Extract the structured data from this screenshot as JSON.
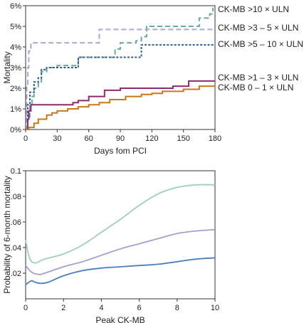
{
  "chart_data": [
    {
      "type": "line",
      "subtype": "step",
      "xlabel": "Days fom PCI",
      "ylabel": "Mortality",
      "xlim": [
        0,
        180
      ],
      "ylim": [
        0,
        6
      ],
      "xticks": [
        0,
        30,
        60,
        90,
        120,
        150,
        180
      ],
      "xtick_labels": [
        "0",
        "30",
        "60",
        "90",
        "120",
        "150",
        "180"
      ],
      "yticks": [
        0,
        1,
        2,
        3,
        4,
        5,
        6
      ],
      "ytick_labels": [
        "0%",
        "1%",
        "2%",
        "3%",
        "4%",
        "5%",
        "6%"
      ],
      "legend_placement": "right, labels at line ends",
      "grid": false,
      "series": [
        {
          "name": "CK-MB >10 × ULN",
          "color": "#6aab96",
          "dash": "dashed",
          "x": [
            0,
            2,
            4,
            6,
            8,
            12,
            15,
            20,
            30,
            50,
            70,
            85,
            90,
            105,
            110,
            115,
            150,
            165,
            175,
            178
          ],
          "y": [
            0,
            0.6,
            1.2,
            1.6,
            2.0,
            2.3,
            2.8,
            3.0,
            3.1,
            3.5,
            3.5,
            3.9,
            4.2,
            4.3,
            4.5,
            5.0,
            5.0,
            5.4,
            5.6,
            5.9
          ]
        },
        {
          "name": "CK-MB >3 – 5 × ULN",
          "color": "#a7a8d4",
          "dash": "dashed",
          "x": [
            0,
            1,
            2,
            3,
            5,
            70,
            170,
            180
          ],
          "y": [
            0,
            2.2,
            3.0,
            3.8,
            4.2,
            4.85,
            4.85,
            4.85
          ]
        },
        {
          "name": "CK-MB >5 – 10 × ULN",
          "color": "#2a5a9e",
          "dash": "dotted",
          "x": [
            0,
            2,
            4,
            8,
            12,
            15,
            20,
            30,
            50,
            110,
            180
          ],
          "y": [
            0,
            1.2,
            1.8,
            2.3,
            2.5,
            2.9,
            3.0,
            3.0,
            3.5,
            4.1,
            4.1
          ]
        },
        {
          "name": "CK-MB >1 – 3 × ULN",
          "color": "#8e2a6d",
          "dash": "solid",
          "x": [
            0,
            2,
            3,
            5,
            40,
            45,
            50,
            60,
            75,
            90,
            110,
            140,
            155,
            180
          ],
          "y": [
            0,
            0.5,
            0.9,
            1.2,
            1.2,
            1.3,
            1.4,
            1.6,
            1.9,
            2.0,
            2.0,
            2.1,
            2.35,
            2.35
          ]
        },
        {
          "name": "CK-MB 0 – 1 × ULN",
          "color": "#c8781a",
          "dash": "solid",
          "x": [
            0,
            3,
            8,
            12,
            20,
            25,
            30,
            40,
            50,
            60,
            70,
            80,
            95,
            110,
            120,
            130,
            150,
            165,
            180
          ],
          "y": [
            0,
            0.1,
            0.3,
            0.5,
            0.7,
            0.8,
            0.9,
            1.0,
            1.1,
            1.2,
            1.3,
            1.45,
            1.6,
            1.7,
            1.75,
            1.85,
            1.95,
            2.1,
            2.1
          ]
        }
      ]
    },
    {
      "type": "line",
      "xlabel": "Peak CK-MB",
      "ylabel": "Probability of 6-month mortality",
      "xlim": [
        0,
        10
      ],
      "ylim": [
        0,
        0.1
      ],
      "xticks": [
        0,
        2,
        4,
        6,
        8,
        10
      ],
      "xtick_labels": [
        "0",
        "2",
        "4",
        "6",
        "8",
        "10"
      ],
      "yticks": [
        0.02,
        0.04,
        0.06,
        0.08,
        0.1
      ],
      "ytick_labels": [
        ".02",
        ".04",
        ".06",
        ".08",
        "0.1"
      ],
      "grid": false,
      "series": [
        {
          "color": "#9ecfb8",
          "x": [
            0,
            0.2,
            0.5,
            1,
            2,
            3,
            4,
            5,
            6,
            7,
            8,
            9,
            10
          ],
          "y": [
            0.046,
            0.032,
            0.028,
            0.031,
            0.035,
            0.042,
            0.052,
            0.062,
            0.073,
            0.082,
            0.087,
            0.089,
            0.089
          ]
        },
        {
          "color": "#a99cd0",
          "x": [
            0,
            0.3,
            0.7,
            1,
            2,
            3,
            4,
            5,
            6,
            7,
            8,
            9,
            10
          ],
          "y": [
            0.026,
            0.021,
            0.019,
            0.02,
            0.025,
            0.029,
            0.034,
            0.039,
            0.043,
            0.047,
            0.051,
            0.053,
            0.054
          ]
        },
        {
          "color": "#4a7fbf",
          "x": [
            0,
            0.3,
            0.5,
            0.8,
            1.2,
            2,
            3,
            4,
            5,
            6,
            7,
            8,
            9,
            10
          ],
          "y": [
            0.011,
            0.014,
            0.013,
            0.012,
            0.013,
            0.018,
            0.022,
            0.024,
            0.025,
            0.026,
            0.027,
            0.029,
            0.031,
            0.032
          ]
        }
      ]
    }
  ]
}
